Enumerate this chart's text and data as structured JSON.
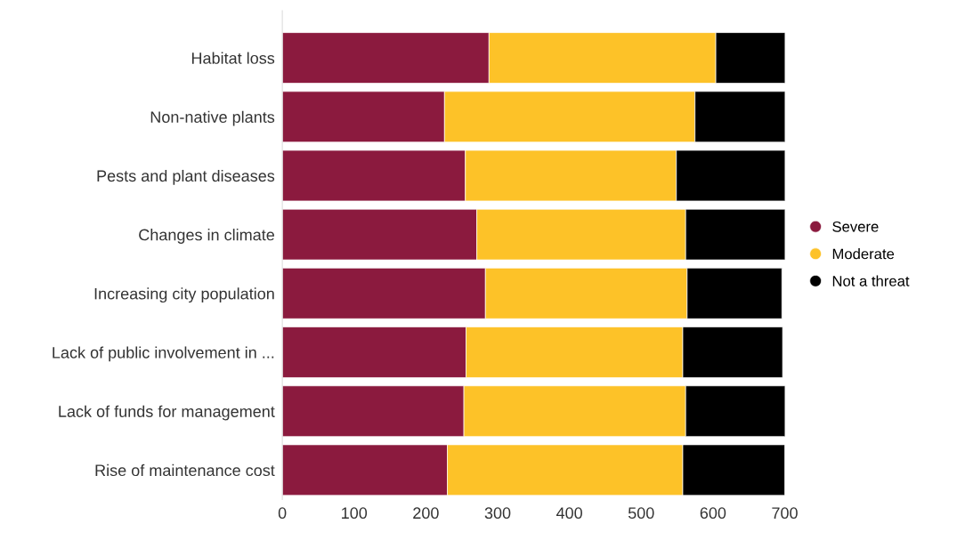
{
  "chart_data": {
    "type": "bar",
    "orientation": "horizontal",
    "stacked": true,
    "categories": [
      "Habitat loss",
      "Non-native plants",
      "Pests and plant diseases",
      "Changes in climate",
      "Increasing city population",
      "Lack of public involvement in ...",
      "Lack of funds for management",
      "Rise of maintenance cost"
    ],
    "series": [
      {
        "name": "Severe",
        "color": "#8b1a3e",
        "values": [
          288,
          226,
          255,
          271,
          283,
          256,
          253,
          230
        ]
      },
      {
        "name": "Moderate",
        "color": "#fdc228",
        "values": [
          316,
          349,
          294,
          291,
          281,
          302,
          309,
          328
        ]
      },
      {
        "name": "Not a threat",
        "color": "#000000",
        "values": [
          98,
          127,
          153,
          140,
          132,
          139,
          140,
          142
        ]
      }
    ],
    "xlim": [
      0,
      700
    ],
    "xticks": [
      0,
      100,
      200,
      300,
      400,
      500,
      600,
      700
    ],
    "grid": false,
    "legend": "right",
    "marker": "circle"
  }
}
